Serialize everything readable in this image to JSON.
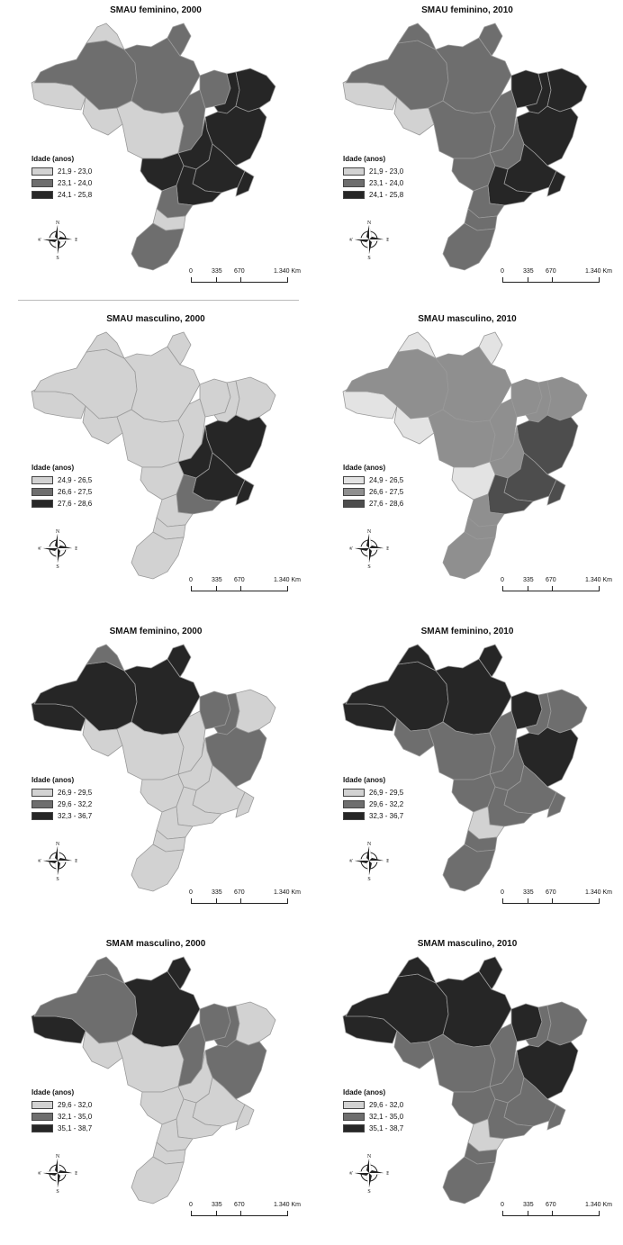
{
  "legend_title": "Idade (anos)",
  "compass": {
    "n": "N",
    "s": "S",
    "e": "E",
    "w": "W"
  },
  "scale": {
    "labels": [
      "0",
      "335",
      "670",
      "1.340 Km"
    ]
  },
  "colors": {
    "light": "#d2d2d2",
    "mid": "#6e6e6e",
    "dark": "#262626",
    "mid2": "#8f8f8f",
    "dark2": "#4d4d4d",
    "lightest": "#e3e3e3",
    "border": "#9a9a9a"
  },
  "panels": [
    {
      "title": "SMAU feminino, 2000",
      "legend": [
        "21,9 - 23,0",
        "23,1 - 24,0",
        "24,1 - 25,8"
      ],
      "palette": [
        "light",
        "mid",
        "dark"
      ],
      "regions": {
        "ac": 0,
        "am": 1,
        "rr": 0,
        "pa": 1,
        "ap": 1,
        "ro": 0,
        "mt": 0,
        "to": 1,
        "ma": 1,
        "pi": 2,
        "ne": 2,
        "ba": 2,
        "go": 2,
        "ms": 2,
        "mg": 2,
        "rj": 2,
        "sp": 2,
        "pr": 1,
        "sc": 0,
        "rs": 1
      }
    },
    {
      "title": "SMAU feminino, 2010",
      "legend": [
        "21,9 - 23,0",
        "23,1 - 24,0",
        "24,1 - 25,8"
      ],
      "palette": [
        "light",
        "mid",
        "dark"
      ],
      "regions": {
        "ac": 0,
        "am": 1,
        "rr": 1,
        "pa": 1,
        "ap": 1,
        "ro": 0,
        "mt": 1,
        "to": 1,
        "ma": 2,
        "pi": 2,
        "ne": 2,
        "ba": 2,
        "go": 1,
        "ms": 1,
        "mg": 2,
        "rj": 2,
        "sp": 2,
        "pr": 1,
        "sc": 1,
        "rs": 1
      }
    },
    {
      "title": "SMAU masculino, 2000",
      "legend": [
        "24,9 - 26,5",
        "26,6 - 27,5",
        "27,6 - 28,6"
      ],
      "palette": [
        "light",
        "mid",
        "dark"
      ],
      "regions": {
        "ac": 0,
        "am": 0,
        "rr": 0,
        "pa": 0,
        "ap": 0,
        "ro": 0,
        "mt": 0,
        "to": 0,
        "ma": 0,
        "pi": 0,
        "ne": 0,
        "ba": 2,
        "go": 2,
        "ms": 0,
        "mg": 2,
        "rj": 2,
        "sp": 1,
        "pr": 0,
        "sc": 0,
        "rs": 0
      }
    },
    {
      "title": "SMAU masculino, 2010",
      "legend": [
        "24,9 - 26,5",
        "26,6 - 27,5",
        "27,6 - 28,6"
      ],
      "palette": [
        "lightest",
        "mid2",
        "dark2"
      ],
      "regions": {
        "ac": 0,
        "am": 1,
        "rr": 0,
        "pa": 1,
        "ap": 0,
        "ro": 0,
        "mt": 1,
        "to": 1,
        "ma": 1,
        "pi": 1,
        "ne": 1,
        "ba": 2,
        "go": 1,
        "ms": 0,
        "mg": 2,
        "rj": 2,
        "sp": 2,
        "pr": 1,
        "sc": 1,
        "rs": 1
      }
    },
    {
      "title": "SMAM feminino, 2000",
      "legend": [
        "26,9 - 29,5",
        "29,6 - 32,2",
        "32,3 - 36,7"
      ],
      "palette": [
        "light",
        "mid",
        "dark"
      ],
      "regions": {
        "ac": 2,
        "am": 2,
        "rr": 1,
        "pa": 2,
        "ap": 2,
        "ro": 0,
        "mt": 0,
        "to": 0,
        "ma": 1,
        "pi": 1,
        "ne": 0,
        "ba": 1,
        "go": 0,
        "ms": 0,
        "mg": 0,
        "rj": 0,
        "sp": 0,
        "pr": 0,
        "sc": 0,
        "rs": 0
      }
    },
    {
      "title": "SMAM feminino, 2010",
      "legend": [
        "26,9 - 29,5",
        "29,6 - 32,2",
        "32,3 - 36,7"
      ],
      "palette": [
        "light",
        "mid",
        "dark"
      ],
      "regions": {
        "ac": 2,
        "am": 2,
        "rr": 2,
        "pa": 2,
        "ap": 2,
        "ro": 1,
        "mt": 1,
        "to": 1,
        "ma": 2,
        "pi": 1,
        "ne": 1,
        "ba": 2,
        "go": 1,
        "ms": 1,
        "mg": 1,
        "rj": 1,
        "sp": 1,
        "pr": 0,
        "sc": 1,
        "rs": 1
      }
    },
    {
      "title": "SMAM masculino, 2000",
      "legend": [
        "29,6 - 32,0",
        "32,1 - 35,0",
        "35,1 - 38,7"
      ],
      "palette": [
        "light",
        "mid",
        "dark"
      ],
      "regions": {
        "ac": 2,
        "am": 1,
        "rr": 1,
        "pa": 2,
        "ap": 2,
        "ro": 0,
        "mt": 0,
        "to": 1,
        "ma": 1,
        "pi": 1,
        "ne": 0,
        "ba": 1,
        "go": 0,
        "ms": 0,
        "mg": 0,
        "rj": 0,
        "sp": 0,
        "pr": 0,
        "sc": 0,
        "rs": 0
      }
    },
    {
      "title": "SMAM masculino, 2010",
      "legend": [
        "29,6 - 32,0",
        "32,1 - 35,0",
        "35,1 - 38,7"
      ],
      "palette": [
        "light",
        "mid",
        "dark"
      ],
      "regions": {
        "ac": 2,
        "am": 2,
        "rr": 2,
        "pa": 2,
        "ap": 2,
        "ro": 1,
        "mt": 1,
        "to": 1,
        "ma": 2,
        "pi": 1,
        "ne": 1,
        "ba": 2,
        "go": 1,
        "ms": 1,
        "mg": 1,
        "rj": 1,
        "sp": 1,
        "pr": 0,
        "sc": 1,
        "rs": 1
      }
    }
  ]
}
